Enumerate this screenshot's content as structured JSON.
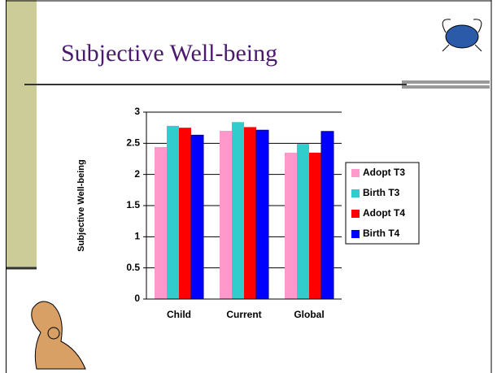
{
  "slide_title": "Subjective Well-being",
  "chart_data": {
    "type": "bar",
    "ylabel": "Subjective Well-being",
    "categories": [
      "Child",
      "Current",
      "Global"
    ],
    "series": [
      {
        "name": "Adopt T3",
        "color": "#ff99cc",
        "values": [
          2.44,
          2.7,
          2.35
        ]
      },
      {
        "name": "Birth T3",
        "color": "#33cccc",
        "values": [
          2.78,
          2.84,
          2.49
        ]
      },
      {
        "name": "Adopt T4",
        "color": "#ff0000",
        "values": [
          2.75,
          2.76,
          2.35
        ]
      },
      {
        "name": "Birth T4",
        "color": "#0000ff",
        "values": [
          2.63,
          2.71,
          2.69
        ]
      }
    ],
    "ylim": [
      0,
      3
    ],
    "yticks": [
      0,
      0.5,
      1,
      1.5,
      2,
      2.5,
      3
    ],
    "grid": true,
    "legend": "right"
  }
}
